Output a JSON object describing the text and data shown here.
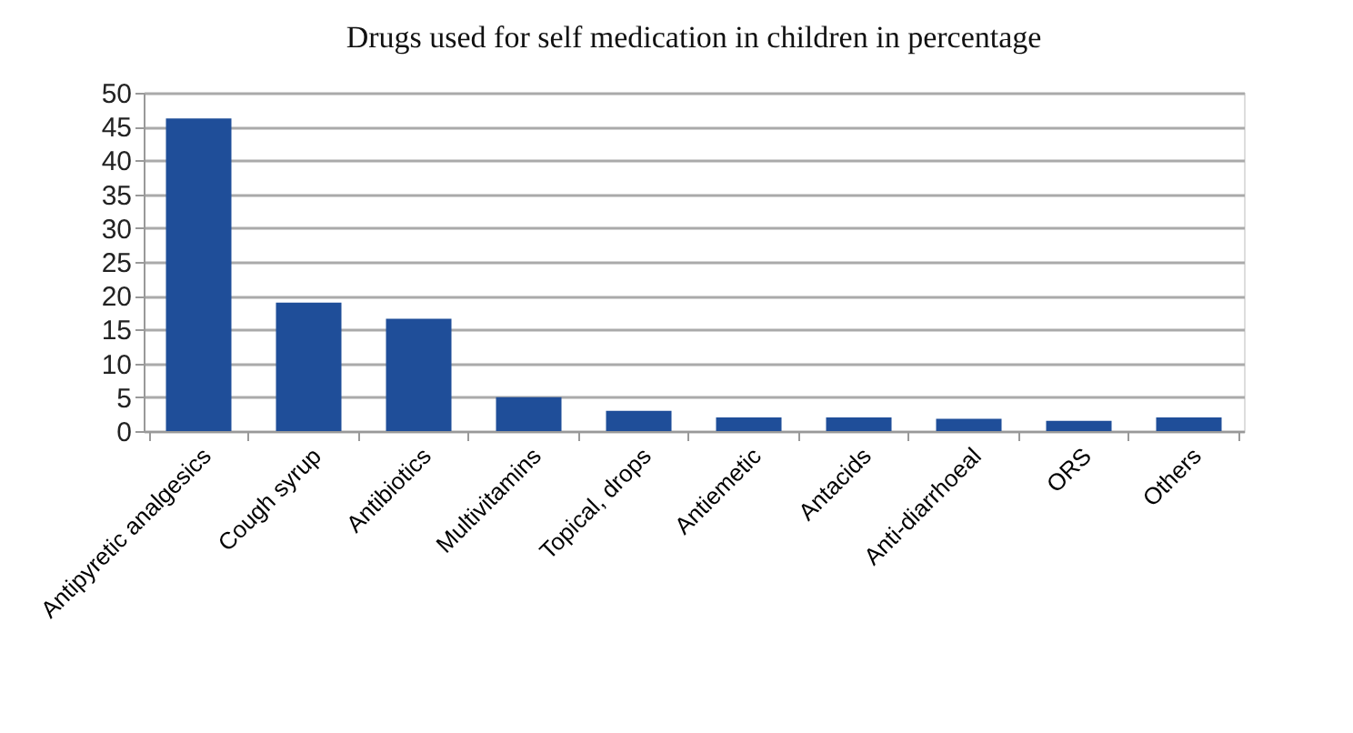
{
  "chart_data": {
    "type": "bar",
    "title": "Drugs used for self medication in children in percentage",
    "categories": [
      "Antipyretic analgesics",
      "Cough syrup",
      "Antibiotics",
      "Multivitamins",
      "Topical, drops",
      "Antiemetic",
      "Antacids",
      "Anti-diarrhoeal",
      "ORS",
      "Others"
    ],
    "values": [
      46.2,
      19,
      16.6,
      5,
      3,
      2,
      2,
      1.8,
      1.5,
      2
    ],
    "color": "#1f4e99",
    "ylim": [
      0,
      50
    ],
    "yticks": [
      0,
      5,
      10,
      15,
      20,
      25,
      30,
      35,
      40,
      45,
      50
    ],
    "grid": "y"
  }
}
